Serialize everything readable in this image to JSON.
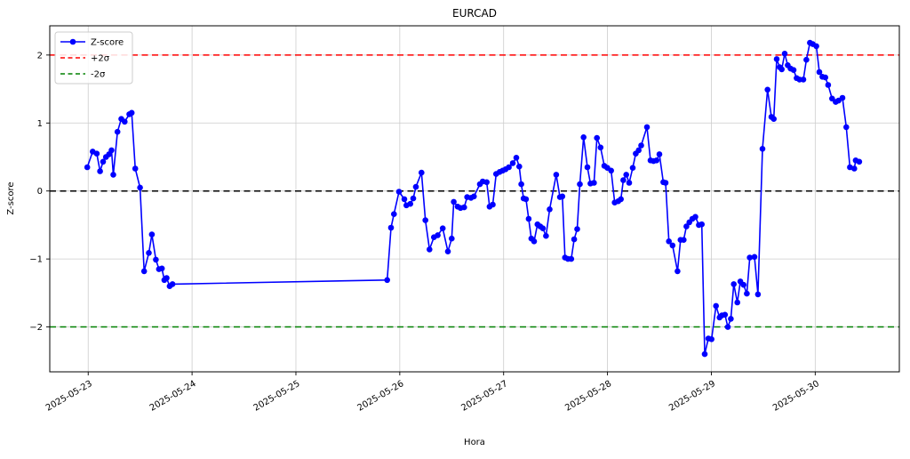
{
  "chart_data": {
    "type": "line",
    "title": "EURCAD",
    "xlabel": "Hora",
    "ylabel": "Z-score",
    "xlim": [
      -0.37,
      7.81
    ],
    "ylim": [
      -2.66,
      2.43
    ],
    "grid": true,
    "x_ticks": [
      {
        "day": 0,
        "label": "2025-05-23"
      },
      {
        "day": 1,
        "label": "2025-05-24"
      },
      {
        "day": 2,
        "label": "2025-05-25"
      },
      {
        "day": 3,
        "label": "2025-05-26"
      },
      {
        "day": 4,
        "label": "2025-05-27"
      },
      {
        "day": 5,
        "label": "2025-05-28"
      },
      {
        "day": 6,
        "label": "2025-05-29"
      },
      {
        "day": 7,
        "label": "2025-05-30"
      }
    ],
    "y_ticks": [
      {
        "value": 2,
        "label": "2"
      },
      {
        "value": 1,
        "label": "1"
      },
      {
        "value": 0,
        "label": "0"
      },
      {
        "value": -1,
        "label": "−1"
      },
      {
        "value": -2,
        "label": "−2"
      }
    ],
    "reference_lines": [
      {
        "name": "+2σ",
        "y": 2,
        "color": "#ff0000"
      },
      {
        "name": "zero",
        "y": 0,
        "color": "#000000"
      },
      {
        "name": "-2σ",
        "y": -2,
        "color": "#008000"
      }
    ],
    "legend": {
      "position": "upper-left",
      "entries": [
        {
          "label": "Z-score",
          "color": "#0000ff",
          "style": "solid-marker"
        },
        {
          "label": "+2σ",
          "color": "#ff0000",
          "style": "dashed"
        },
        {
          "label": "-2σ",
          "color": "#008000",
          "style": "dashed"
        }
      ]
    },
    "series": [
      {
        "name": "Z-score",
        "color": "#0000ff",
        "marker": "circle",
        "points": [
          [
            -0.009,
            0.35
          ],
          [
            0.043,
            0.58
          ],
          [
            0.083,
            0.55
          ],
          [
            0.114,
            0.29
          ],
          [
            0.143,
            0.43
          ],
          [
            0.171,
            0.5
          ],
          [
            0.201,
            0.54
          ],
          [
            0.225,
            0.6
          ],
          [
            0.242,
            0.24
          ],
          [
            0.282,
            0.87
          ],
          [
            0.319,
            1.06
          ],
          [
            0.351,
            1.02
          ],
          [
            0.396,
            1.13
          ],
          [
            0.419,
            1.15
          ],
          [
            0.453,
            0.33
          ],
          [
            0.499,
            0.05
          ],
          [
            0.539,
            -1.18
          ],
          [
            0.584,
            -0.91
          ],
          [
            0.613,
            -0.64
          ],
          [
            0.652,
            -1.01
          ],
          [
            0.682,
            -1.15
          ],
          [
            0.71,
            -1.14
          ],
          [
            0.733,
            -1.31
          ],
          [
            0.755,
            -1.28
          ],
          [
            0.784,
            -1.4
          ],
          [
            0.812,
            -1.37
          ],
          [
            2.879,
            -1.31
          ],
          [
            2.916,
            -0.54
          ],
          [
            2.944,
            -0.34
          ],
          [
            2.993,
            -0.01
          ],
          [
            3.044,
            -0.12
          ],
          [
            3.064,
            -0.21
          ],
          [
            3.101,
            -0.19
          ],
          [
            3.13,
            -0.11
          ],
          [
            3.155,
            0.06
          ],
          [
            3.209,
            0.27
          ],
          [
            3.247,
            -0.43
          ],
          [
            3.286,
            -0.86
          ],
          [
            3.329,
            -0.68
          ],
          [
            3.366,
            -0.65
          ],
          [
            3.414,
            -0.55
          ],
          [
            3.463,
            -0.89
          ],
          [
            3.5,
            -0.7
          ],
          [
            3.52,
            -0.16
          ],
          [
            3.557,
            -0.23
          ],
          [
            3.585,
            -0.25
          ],
          [
            3.62,
            -0.24
          ],
          [
            3.649,
            -0.09
          ],
          [
            3.686,
            -0.1
          ],
          [
            3.714,
            -0.08
          ],
          [
            3.771,
            0.1
          ],
          [
            3.799,
            0.14
          ],
          [
            3.837,
            0.13
          ],
          [
            3.865,
            -0.23
          ],
          [
            3.895,
            -0.2
          ],
          [
            3.928,
            0.25
          ],
          [
            3.961,
            0.28
          ],
          [
            3.99,
            0.3
          ],
          [
            4.019,
            0.32
          ],
          [
            4.05,
            0.35
          ],
          [
            4.088,
            0.41
          ],
          [
            4.122,
            0.49
          ],
          [
            4.15,
            0.36
          ],
          [
            4.17,
            0.1
          ],
          [
            4.192,
            -0.11
          ],
          [
            4.215,
            -0.12
          ],
          [
            4.241,
            -0.41
          ],
          [
            4.267,
            -0.7
          ],
          [
            4.293,
            -0.74
          ],
          [
            4.326,
            -0.49
          ],
          [
            4.352,
            -0.52
          ],
          [
            4.378,
            -0.55
          ],
          [
            4.408,
            -0.66
          ],
          [
            4.443,
            -0.27
          ],
          [
            4.506,
            0.24
          ],
          [
            4.542,
            -0.09
          ],
          [
            4.565,
            -0.08
          ],
          [
            4.591,
            -0.98
          ],
          [
            4.619,
            -1.0
          ],
          [
            4.651,
            -1.0
          ],
          [
            4.679,
            -0.71
          ],
          [
            4.708,
            -0.56
          ],
          [
            4.734,
            0.1
          ],
          [
            4.77,
            0.79
          ],
          [
            4.807,
            0.35
          ],
          [
            4.836,
            0.11
          ],
          [
            4.87,
            0.12
          ],
          [
            4.898,
            0.78
          ],
          [
            4.933,
            0.64
          ],
          [
            4.969,
            0.37
          ],
          [
            4.998,
            0.34
          ],
          [
            5.035,
            0.3
          ],
          [
            5.069,
            -0.17
          ],
          [
            5.104,
            -0.15
          ],
          [
            5.129,
            -0.12
          ],
          [
            5.152,
            0.16
          ],
          [
            5.181,
            0.24
          ],
          [
            5.209,
            0.12
          ],
          [
            5.243,
            0.34
          ],
          [
            5.272,
            0.55
          ],
          [
            5.3,
            0.6
          ],
          [
            5.324,
            0.67
          ],
          [
            5.38,
            0.94
          ],
          [
            5.414,
            0.45
          ],
          [
            5.443,
            0.44
          ],
          [
            5.472,
            0.45
          ],
          [
            5.5,
            0.54
          ],
          [
            5.537,
            0.13
          ],
          [
            5.56,
            0.12
          ],
          [
            5.591,
            -0.74
          ],
          [
            5.626,
            -0.8
          ],
          [
            5.674,
            -1.18
          ],
          [
            5.703,
            -0.72
          ],
          [
            5.733,
            -0.72
          ],
          [
            5.76,
            -0.52
          ],
          [
            5.788,
            -0.46
          ],
          [
            5.817,
            -0.41
          ],
          [
            5.846,
            -0.38
          ],
          [
            5.88,
            -0.5
          ],
          [
            5.908,
            -0.49
          ],
          [
            5.936,
            -2.4
          ],
          [
            5.971,
            -2.17
          ],
          [
            6.002,
            -2.18
          ],
          [
            6.045,
            -1.69
          ],
          [
            6.079,
            -1.86
          ],
          [
            6.102,
            -1.83
          ],
          [
            6.131,
            -1.82
          ],
          [
            6.159,
            -2.0
          ],
          [
            6.188,
            -1.88
          ],
          [
            6.216,
            -1.37
          ],
          [
            6.25,
            -1.64
          ],
          [
            6.279,
            -1.33
          ],
          [
            6.31,
            -1.38
          ],
          [
            6.342,
            -1.51
          ],
          [
            6.37,
            -0.98
          ],
          [
            6.415,
            -0.97
          ],
          [
            6.449,
            -1.52
          ],
          [
            6.492,
            0.62
          ],
          [
            6.541,
            1.49
          ],
          [
            6.578,
            1.09
          ],
          [
            6.601,
            1.06
          ],
          [
            6.629,
            1.94
          ],
          [
            6.658,
            1.82
          ],
          [
            6.678,
            1.79
          ],
          [
            6.706,
            2.02
          ],
          [
            6.735,
            1.85
          ],
          [
            6.763,
            1.8
          ],
          [
            6.792,
            1.78
          ],
          [
            6.821,
            1.66
          ],
          [
            6.849,
            1.64
          ],
          [
            6.886,
            1.64
          ],
          [
            6.915,
            1.93
          ],
          [
            6.949,
            2.18
          ],
          [
            6.977,
            2.16
          ],
          [
            7.011,
            2.13
          ],
          [
            7.04,
            1.75
          ],
          [
            7.069,
            1.68
          ],
          [
            7.097,
            1.67
          ],
          [
            7.125,
            1.56
          ],
          [
            7.162,
            1.36
          ],
          [
            7.197,
            1.31
          ],
          [
            7.225,
            1.33
          ],
          [
            7.262,
            1.37
          ],
          [
            7.299,
            0.94
          ],
          [
            7.334,
            0.35
          ],
          [
            7.376,
            0.33
          ],
          [
            7.39,
            0.45
          ],
          [
            7.424,
            0.43
          ]
        ]
      }
    ],
    "colors": {
      "series": "#0000ff",
      "upper_band": "#ff0000",
      "lower_band": "#008000",
      "zero_line": "#000000",
      "grid": "#cccccc"
    }
  }
}
